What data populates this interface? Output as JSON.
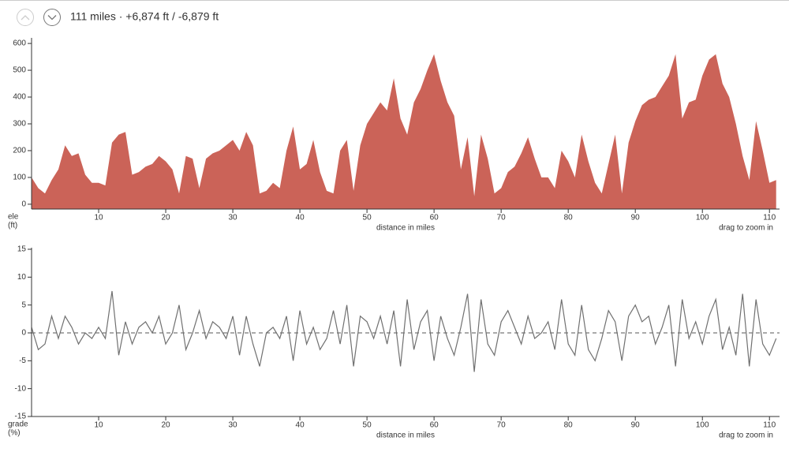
{
  "header": {
    "summary": "111 miles · +6,874 ft / -6,879 ft"
  },
  "chart_data": [
    {
      "type": "area",
      "y_label": "ele",
      "y_unit": "(ft)",
      "x_label": "distance in miles",
      "hint": "drag to zoom in",
      "color": "#cb6358",
      "x": [
        0,
        1,
        2,
        3,
        4,
        5,
        6,
        7,
        8,
        9,
        10,
        11,
        12,
        13,
        14,
        15,
        16,
        17,
        18,
        19,
        20,
        21,
        22,
        23,
        24,
        25,
        26,
        27,
        28,
        29,
        30,
        31,
        32,
        33,
        34,
        35,
        36,
        37,
        38,
        39,
        40,
        41,
        42,
        43,
        44,
        45,
        46,
        47,
        48,
        49,
        50,
        51,
        52,
        53,
        54,
        55,
        56,
        57,
        58,
        59,
        60,
        61,
        62,
        63,
        64,
        65,
        66,
        67,
        68,
        69,
        70,
        71,
        72,
        73,
        74,
        75,
        76,
        77,
        78,
        79,
        80,
        81,
        82,
        83,
        84,
        85,
        86,
        87,
        88,
        89,
        90,
        91,
        92,
        93,
        94,
        95,
        96,
        97,
        98,
        99,
        100,
        101,
        102,
        103,
        104,
        105,
        106,
        107,
        108,
        109,
        110,
        111
      ],
      "values": [
        100,
        60,
        40,
        90,
        130,
        220,
        180,
        190,
        110,
        80,
        80,
        70,
        230,
        260,
        270,
        110,
        120,
        140,
        150,
        180,
        160,
        130,
        40,
        180,
        170,
        60,
        170,
        190,
        200,
        220,
        240,
        200,
        270,
        220,
        40,
        50,
        80,
        60,
        200,
        290,
        130,
        150,
        240,
        120,
        50,
        40,
        200,
        240,
        50,
        220,
        300,
        340,
        380,
        350,
        470,
        320,
        260,
        380,
        430,
        500,
        560,
        460,
        380,
        330,
        130,
        250,
        30,
        260,
        170,
        40,
        60,
        120,
        140,
        190,
        250,
        170,
        100,
        100,
        60,
        200,
        160,
        100,
        260,
        160,
        80,
        40,
        150,
        260,
        40,
        230,
        310,
        370,
        390,
        400,
        440,
        480,
        560,
        320,
        380,
        390,
        480,
        540,
        560,
        450,
        400,
        300,
        180,
        90,
        310,
        200,
        80,
        90
      ],
      "xlim": [
        0,
        111.5
      ],
      "xticks": [
        10,
        20,
        30,
        40,
        50,
        60,
        70,
        80,
        90,
        100,
        110
      ],
      "ylim": [
        -18,
        615
      ],
      "yticks": [
        0,
        100,
        200,
        300,
        400,
        500,
        600
      ]
    },
    {
      "type": "line",
      "y_label": "grade",
      "y_unit": "(%)",
      "x_label": "distance in miles",
      "hint": "drag to zoom in",
      "color": "#707070",
      "zero_line": 0,
      "x": [
        0,
        1,
        2,
        3,
        4,
        5,
        6,
        7,
        8,
        9,
        10,
        11,
        12,
        13,
        14,
        15,
        16,
        17,
        18,
        19,
        20,
        21,
        22,
        23,
        24,
        25,
        26,
        27,
        28,
        29,
        30,
        31,
        32,
        33,
        34,
        35,
        36,
        37,
        38,
        39,
        40,
        41,
        42,
        43,
        44,
        45,
        46,
        47,
        48,
        49,
        50,
        51,
        52,
        53,
        54,
        55,
        56,
        57,
        58,
        59,
        60,
        61,
        62,
        63,
        64,
        65,
        66,
        67,
        68,
        69,
        70,
        71,
        72,
        73,
        74,
        75,
        76,
        77,
        78,
        79,
        80,
        81,
        82,
        83,
        84,
        85,
        86,
        87,
        88,
        89,
        90,
        91,
        92,
        93,
        94,
        95,
        96,
        97,
        98,
        99,
        100,
        101,
        102,
        103,
        104,
        105,
        106,
        107,
        108,
        109,
        110,
        111
      ],
      "values": [
        1,
        -3,
        -2,
        3,
        -1,
        3,
        1,
        -2,
        0,
        -1,
        1,
        -1,
        7.5,
        -4,
        2,
        -2,
        1,
        2,
        0,
        3,
        -2,
        0,
        5,
        -3,
        0,
        4,
        -1,
        2,
        1,
        -1,
        3,
        -4,
        3,
        -2,
        -6,
        0,
        1,
        -1,
        3,
        -5,
        4,
        -2,
        1,
        -3,
        -1,
        4,
        -2,
        5,
        -6,
        3,
        2,
        -1,
        3,
        -2,
        4,
        -6,
        6,
        -3,
        2,
        4,
        -5,
        3,
        -1,
        -4,
        1,
        7,
        -7,
        6,
        -2,
        -4,
        2,
        4,
        1,
        -2,
        3,
        -1,
        0,
        2,
        -3,
        6,
        -2,
        -4,
        5,
        -3,
        -5,
        -1,
        4,
        2,
        -5,
        3,
        5,
        2,
        3,
        -2,
        1,
        5,
        -6,
        6,
        -1,
        2,
        -2,
        3,
        6,
        -3,
        1,
        -4,
        7,
        -6,
        6,
        -2,
        -4,
        -1
      ],
      "xlim": [
        0,
        111.5
      ],
      "xticks": [
        10,
        20,
        30,
        40,
        50,
        60,
        70,
        80,
        90,
        100,
        110
      ],
      "ylim": [
        -15,
        15
      ],
      "yticks": [
        -15,
        -10,
        -5,
        0,
        5,
        10,
        15
      ]
    }
  ]
}
